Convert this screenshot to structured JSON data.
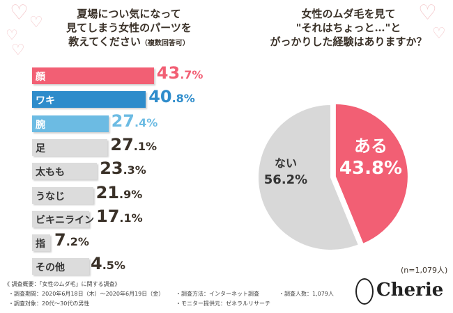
{
  "chart_data": [
    {
      "type": "bar",
      "title": "夏場につい気になって見てしまう女性のパーツを教えてください",
      "title_note": "（複数回答可）",
      "categories": [
        "顔",
        "ワキ",
        "腕",
        "足",
        "太もも",
        "うなじ",
        "ビキニライン",
        "指",
        "その他"
      ],
      "values": [
        43.7,
        40.8,
        27.4,
        27.1,
        23.3,
        21.9,
        17.1,
        7.2,
        4.5
      ],
      "value_labels": [
        [
          "43",
          ".7%"
        ],
        [
          "40",
          ".8%"
        ],
        [
          "27",
          ".4%"
        ],
        [
          "27",
          ".1%"
        ],
        [
          "23",
          ".3%"
        ],
        [
          "21",
          ".9%"
        ],
        [
          "17",
          ".1%"
        ],
        [
          "7",
          ".2%"
        ],
        [
          "4",
          ".5%"
        ]
      ],
      "colors": [
        "#f25f74",
        "#2e8ccb",
        "#6cbbe3",
        "#dcdcdc",
        "#dcdcdc",
        "#dcdcdc",
        "#dcdcdc",
        "#dcdcdc",
        "#dcdcdc"
      ],
      "value_colors": [
        "#f25f74",
        "#2e8ccb",
        "#6cbbe3",
        "#3a3128",
        "#3a3128",
        "#3a3128",
        "#3a3128",
        "#3a3128",
        "#3a3128"
      ]
    },
    {
      "type": "pie",
      "title": "女性のムダ毛を見て\"それはちょっと…\"とがっかりした経験はありますか？",
      "slices": [
        {
          "label": "ある",
          "value": 43.8,
          "label_value": "43.8%",
          "color": "#f25f74"
        },
        {
          "label": "ない",
          "value": 56.2,
          "label_value": "56.2%",
          "color": "#d8d8d8"
        }
      ],
      "sample": "(n=1,079人)"
    }
  ],
  "titles": {
    "left_lines": [
      "夏場につい気になって",
      "見てしまう女性のパーツを",
      "教えてください"
    ],
    "left_note": "（複数回答可）",
    "right_lines": [
      "女性のムダ毛を見て",
      "\"それはちょっと…\"と",
      "がっかりした経験はありますか？"
    ]
  },
  "footer": {
    "heading": "《 調査概要：「女性のムダ毛」に関する調査》",
    "period": "・調査期間：2020年6月18日（木）～2020年6月19日（金）",
    "method": "・調査方法：インターネット調査",
    "count": "・調査人数：1,079人",
    "target": "・調査対象：20代～30代の男性",
    "provider": "・モニター提供元：ゼネラルリサーチ"
  },
  "brand": "Cherie"
}
